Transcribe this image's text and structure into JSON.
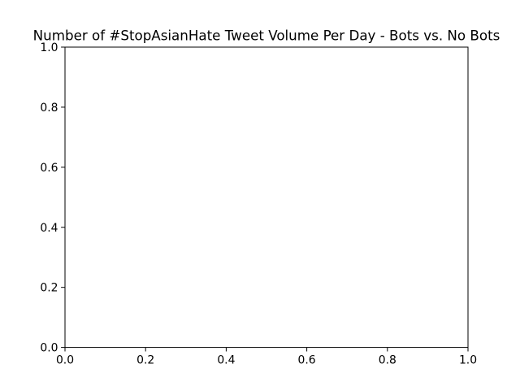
{
  "chart_data": {
    "type": "line",
    "title": "Number of #StopAsianHate Tweet Volume Per Day - Bots vs. No Bots",
    "xlabel": "",
    "ylabel": "",
    "xlim": [
      0.0,
      1.0
    ],
    "ylim": [
      0.0,
      1.0
    ],
    "x_ticks": [
      "0.0",
      "0.2",
      "0.4",
      "0.6",
      "0.8",
      "1.0"
    ],
    "y_ticks": [
      "0.0",
      "0.2",
      "0.4",
      "0.6",
      "0.8",
      "1.0"
    ],
    "grid": false,
    "series": [],
    "colors": {
      "axes": "#000000",
      "background": "#ffffff"
    }
  }
}
